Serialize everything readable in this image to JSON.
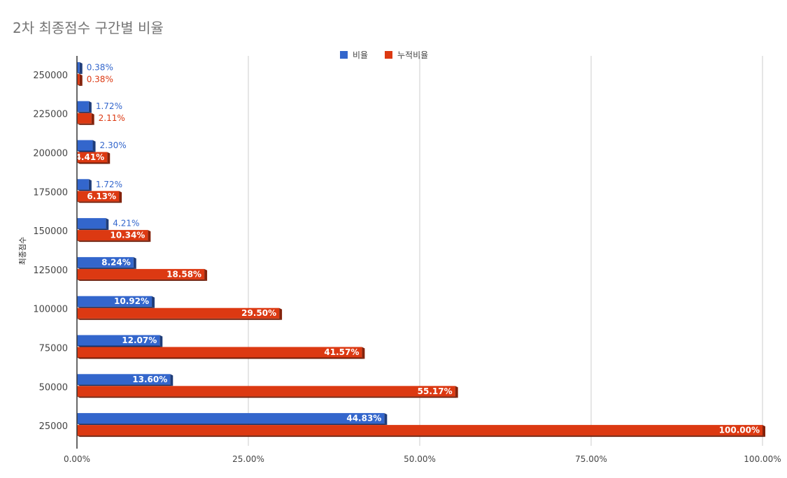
{
  "chart_data": {
    "type": "bar",
    "orientation": "horizontal",
    "title": "2차 최종점수 구간별 비율",
    "ylabel": "최종점수",
    "xlabel": "",
    "categories": [
      "250000",
      "225000",
      "200000",
      "175000",
      "150000",
      "125000",
      "100000",
      "75000",
      "50000",
      "25000"
    ],
    "series": [
      {
        "name": "비율",
        "color": "#3366cc",
        "values": [
          0.38,
          1.72,
          2.3,
          1.72,
          4.21,
          8.24,
          10.92,
          12.07,
          13.6,
          44.83
        ],
        "labels": [
          "0.38%",
          "1.72%",
          "2.30%",
          "1.72%",
          "4.21%",
          "8.24%",
          "10.92%",
          "12.07%",
          "13.60%",
          "44.83%"
        ]
      },
      {
        "name": "누적비율",
        "color": "#dc3912",
        "values": [
          0.38,
          2.11,
          4.41,
          6.13,
          10.34,
          18.58,
          29.5,
          41.57,
          55.17,
          100.0
        ],
        "labels": [
          "0.38%",
          "2.11%",
          "4.41%",
          "6.13%",
          "10.34%",
          "18.58%",
          "29.50%",
          "41.57%",
          "55.17%",
          "100.00%"
        ]
      }
    ],
    "xlim": [
      0,
      100
    ],
    "xticks": [
      0,
      25,
      50,
      75,
      100
    ],
    "xtick_labels": [
      "0.00%",
      "25.00%",
      "50.00%",
      "75.00%",
      "100.00%"
    ],
    "legend_position": "top",
    "grid": true
  }
}
